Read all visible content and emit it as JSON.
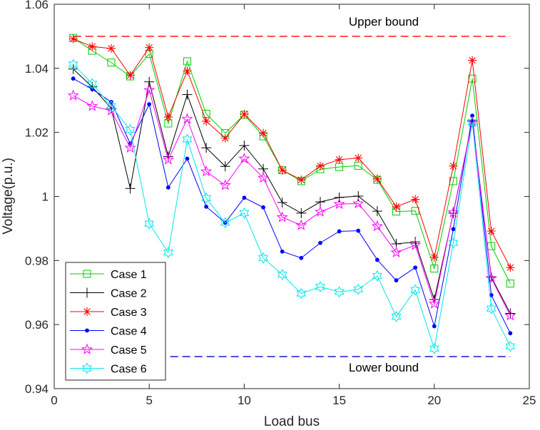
{
  "chart_data": {
    "type": "line",
    "title": "",
    "xlabel": "Load bus",
    "ylabel": "Voltage(p.u.)",
    "xlim": [
      0,
      25
    ],
    "ylim": [
      0.94,
      1.06
    ],
    "xticks": [
      0,
      5,
      10,
      15,
      20,
      25
    ],
    "xtick_labels": [
      "0",
      "5",
      "10",
      "15",
      "20",
      "25"
    ],
    "yticks": [
      0.94,
      0.96,
      0.98,
      1.0,
      1.02,
      1.04,
      1.06
    ],
    "ytick_labels": [
      "0.94",
      "0.96",
      "0.98",
      "1",
      "1.02",
      "1.04",
      "1.06"
    ],
    "x": [
      1,
      2,
      3,
      4,
      5,
      6,
      7,
      8,
      9,
      10,
      11,
      12,
      13,
      14,
      15,
      16,
      17,
      18,
      19,
      20,
      21,
      22,
      23,
      24
    ],
    "series": [
      {
        "name": "Case 1",
        "color": "#00cc00",
        "marker": "square",
        "values": [
          1.0495,
          1.0455,
          1.0418,
          1.0375,
          1.0445,
          1.0228,
          1.0422,
          1.0258,
          1.0198,
          1.0255,
          1.0188,
          1.0082,
          1.0048,
          1.0085,
          1.0092,
          1.0096,
          1.0052,
          0.9953,
          0.9955,
          0.9775,
          1.0048,
          1.0368,
          0.9845,
          0.9728
        ]
      },
      {
        "name": "Case 2",
        "color": "#000000",
        "marker": "plus",
        "values": [
          1.0398,
          1.0342,
          1.0275,
          1.0025,
          1.0358,
          1.0125,
          1.0318,
          1.0152,
          1.0094,
          1.0159,
          1.0086,
          0.9981,
          0.9948,
          0.9983,
          0.9997,
          1.0001,
          0.9954,
          0.9852,
          0.9858,
          0.9678,
          0.9948,
          1.0235,
          0.9748,
          0.9635
        ]
      },
      {
        "name": "Case 3",
        "color": "#ff0000",
        "marker": "asterisk",
        "values": [
          1.0492,
          1.0468,
          1.0462,
          1.0378,
          1.0465,
          1.0248,
          1.0392,
          1.0235,
          1.0182,
          1.0257,
          1.0198,
          1.0082,
          1.0052,
          1.0095,
          1.0115,
          1.012,
          1.0055,
          0.9968,
          0.9991,
          0.981,
          1.0095,
          1.0425,
          0.9892,
          0.9778
        ]
      },
      {
        "name": "Case 4",
        "color": "#0000ff",
        "marker": "dot",
        "values": [
          1.0368,
          1.0335,
          1.0295,
          1.0165,
          1.0288,
          1.0028,
          1.0118,
          0.9968,
          0.9918,
          0.9996,
          0.9966,
          0.9828,
          0.9808,
          0.9855,
          0.9891,
          0.9893,
          0.9802,
          0.9738,
          0.9778,
          0.9595,
          0.9898,
          1.0252,
          0.9692,
          0.9573
        ]
      },
      {
        "name": "Case 5",
        "color": "#ff00ff",
        "marker": "pentagram",
        "values": [
          1.0315,
          1.0282,
          1.0268,
          1.0152,
          1.0332,
          1.0115,
          1.0242,
          1.0078,
          1.0035,
          1.0118,
          1.0058,
          0.9935,
          0.991,
          0.9952,
          0.9976,
          0.9978,
          0.9907,
          0.9825,
          0.9848,
          0.9665,
          0.995,
          1.0232,
          0.9745,
          0.9628
        ]
      },
      {
        "name": "Case 6",
        "color": "#00e5ee",
        "marker": "hexagram",
        "values": [
          1.0412,
          1.0352,
          1.0282,
          1.0208,
          0.9915,
          0.9825,
          1.0178,
          0.9995,
          0.9918,
          0.9948,
          0.9808,
          0.9756,
          0.9697,
          0.9718,
          0.9702,
          0.971,
          0.9752,
          0.9625,
          0.9708,
          0.9525,
          0.9855,
          1.0232,
          0.965,
          0.9532
        ]
      }
    ],
    "reference_lines": [
      {
        "name": "Upper bound",
        "value": 1.05,
        "color": "#ff0000",
        "style": "dashed"
      },
      {
        "name": "Lower bound",
        "value": 0.95,
        "color": "#0000cc",
        "style": "dashed"
      }
    ],
    "annotations": {
      "upper": "Upper bound",
      "lower": "Lower bound"
    },
    "legend_position": "bottom-left"
  }
}
